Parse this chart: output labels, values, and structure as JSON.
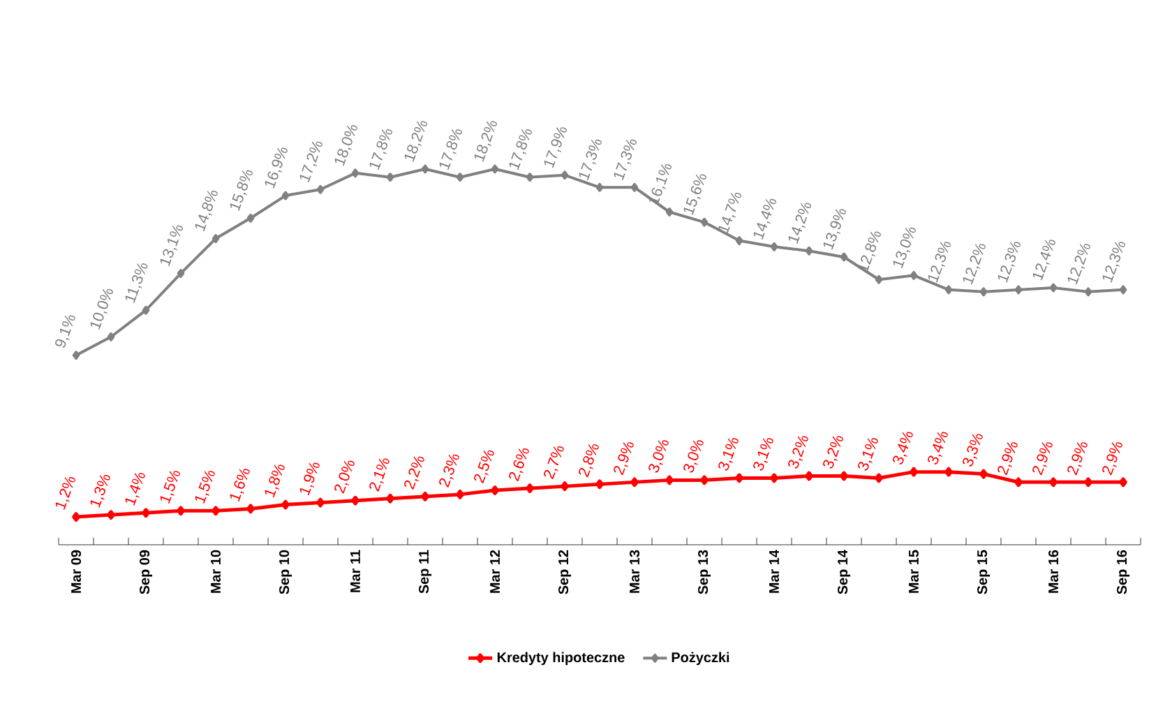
{
  "chart_data": {
    "type": "line",
    "categories": [
      "Mar 09",
      null,
      "Sep 09",
      null,
      "Mar 10",
      null,
      "Sep 10",
      null,
      "Mar 11",
      null,
      "Sep 11",
      null,
      "Mar 12",
      null,
      "Sep 12",
      null,
      "Mar 13",
      null,
      "Sep 13",
      null,
      "Mar 14",
      null,
      "Sep 14",
      null,
      "Mar 15",
      null,
      "Sep 15",
      null,
      "Mar 16",
      null,
      "Sep 16"
    ],
    "series": [
      {
        "name": "Kredyty hipoteczne",
        "color": "#ff0000",
        "values": [
          1.2,
          1.3,
          1.4,
          1.5,
          1.5,
          1.6,
          1.8,
          1.9,
          2.0,
          2.1,
          2.2,
          2.3,
          2.5,
          2.6,
          2.7,
          2.8,
          2.9,
          3.0,
          3.0,
          3.1,
          3.1,
          3.2,
          3.2,
          3.1,
          3.4,
          3.4,
          3.3,
          2.9,
          2.9,
          2.9,
          2.9
        ],
        "value_labels": [
          "1,2%",
          "1,3%",
          "1,4%",
          "1,5%",
          "1,5%",
          "1,6%",
          "1,8%",
          "1,9%",
          "2,0%",
          "2,1%",
          "2,2%",
          "2,3%",
          "2,5%",
          "2,6%",
          "2,7%",
          "2,8%",
          "2,9%",
          "3,0%",
          "3,0%",
          "3,1%",
          "3,1%",
          "3,2%",
          "3,2%",
          "3,1%",
          "3,4%",
          "3,4%",
          "3,3%",
          "2,9%",
          "2,9%",
          "2,9%",
          "2,9%"
        ]
      },
      {
        "name": "Pożyczki",
        "color": "#808080",
        "values": [
          9.1,
          10.0,
          11.3,
          13.1,
          14.8,
          15.8,
          16.9,
          17.2,
          18.0,
          17.8,
          18.2,
          17.8,
          18.2,
          17.8,
          17.9,
          17.3,
          17.3,
          16.1,
          15.6,
          14.7,
          14.4,
          14.2,
          13.9,
          12.8,
          13.0,
          12.3,
          12.2,
          12.3,
          12.4,
          12.2,
          12.3
        ],
        "value_labels": [
          "9,1%",
          "10,0%",
          "11,3%",
          "13,1%",
          "14,8%",
          "15,8%",
          "16,9%",
          "17,2%",
          "18,0%",
          "17,8%",
          "18,2%",
          "17,8%",
          "18,2%",
          "17,8%",
          "17,9%",
          "17,3%",
          "17,3%",
          "16,1%",
          "15,6%",
          "14,7%",
          "14,4%",
          "14,2%",
          "13,9%",
          "12,8%",
          "13,0%",
          "12,3%",
          "12,2%",
          "12,3%",
          "12,4%",
          "12,2%",
          "12,3%"
        ]
      }
    ],
    "tick_labels": "x",
    "legend": "bottom",
    "marker": "diamond",
    "line_style": "solid",
    "grid": false
  }
}
